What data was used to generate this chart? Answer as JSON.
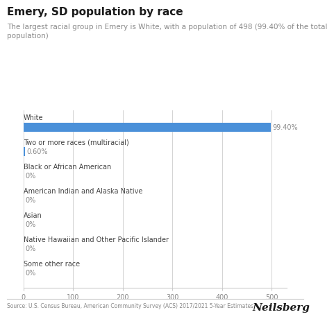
{
  "title": "Emery, SD population by race",
  "subtitle": "The largest racial group in Emery is White, with a population of 498 (99.40% of the total\npopulation)",
  "categories": [
    "White",
    "Two or more races (multiracial)",
    "Black or African American",
    "American Indian and Alaska Native",
    "Asian",
    "Native Hawaiian and Other Pacific Islander",
    "Some other race"
  ],
  "values": [
    498,
    3,
    0,
    0,
    0,
    0,
    0
  ],
  "percentages": [
    "99.40%",
    "0.60%",
    "0%",
    "0%",
    "0%",
    "0%",
    "0%"
  ],
  "bar_color": "#4a90d9",
  "xlim": [
    0,
    530
  ],
  "xticks": [
    0,
    100,
    200,
    300,
    400,
    500
  ],
  "background_color": "#ffffff",
  "title_fontsize": 11,
  "subtitle_fontsize": 7.5,
  "cat_fontsize": 7,
  "pct_fontsize": 7,
  "tick_fontsize": 7,
  "source_text": "Source: U.S. Census Bureau, American Community Survey (ACS) 2017/2021 5-Year Estimates",
  "brand_text": "Neilsberg",
  "text_color": "#1a1a1a",
  "gray_text": "#888888",
  "axis_color": "#cccccc",
  "label_color": "#444444"
}
